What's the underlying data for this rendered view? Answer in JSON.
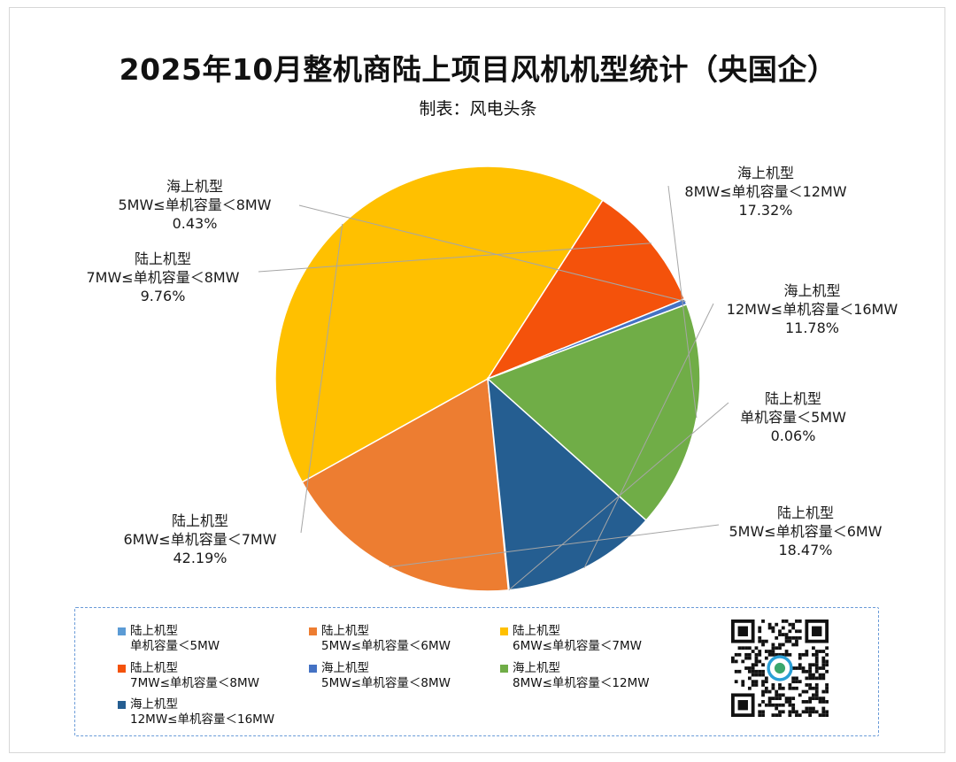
{
  "title": "2025年10月整机商陆上项目风机机型统计（央国企）",
  "subtitle": "制表：风电头条",
  "chart_data": {
    "type": "pie",
    "title": "2025年10月整机商陆上项目风机机型统计（央国企）",
    "subtitle": "制表：风电头条",
    "slices": [
      {
        "type_label": "陆上机型",
        "range_label": "单机容量＜5MW",
        "legend_range": "单机容量＜5MW",
        "value": 0.06,
        "percent_label": "0.06%",
        "color": "#5B9BD5"
      },
      {
        "type_label": "陆上机型",
        "range_label": "5MW≤单机容量＜6MW",
        "legend_range": "5MW≤单机容量＜6MW",
        "value": 18.47,
        "percent_label": "18.47%",
        "color": "#ED7D31"
      },
      {
        "type_label": "陆上机型",
        "range_label": "6MW≤单机容量＜7MW",
        "legend_range": "6MW≤单机容量＜7MW",
        "value": 42.19,
        "percent_label": "42.19%",
        "color": "#FFC000"
      },
      {
        "type_label": "陆上机型",
        "range_label": "7MW≤单机容量＜8MW",
        "legend_range": "7MW≤单机容量＜8MW",
        "value": 9.76,
        "percent_label": "9.76%",
        "color": "#F4520B"
      },
      {
        "type_label": "海上机型",
        "range_label": "5MW≤单机容量＜8MW",
        "legend_range": "5MW≤单机容量＜8MW",
        "value": 0.43,
        "percent_label": "0.43%",
        "color": "#4472C4"
      },
      {
        "type_label": "海上机型",
        "range_label": "8MW≤单机容量＜12MW",
        "legend_range": "8MW≤单机容量＜12MW",
        "value": 17.32,
        "percent_label": "17.32%",
        "color": "#70AD47"
      },
      {
        "type_label": "海上机型",
        "range_label": "12MW≤单机容量＜16MW",
        "legend_range": "12MW≤单机容量＜16MW",
        "value": 11.78,
        "percent_label": "11.78%",
        "color": "#255E91"
      }
    ]
  },
  "qr_code": {
    "icon": "qr-code-icon",
    "caption": "风电头条"
  }
}
